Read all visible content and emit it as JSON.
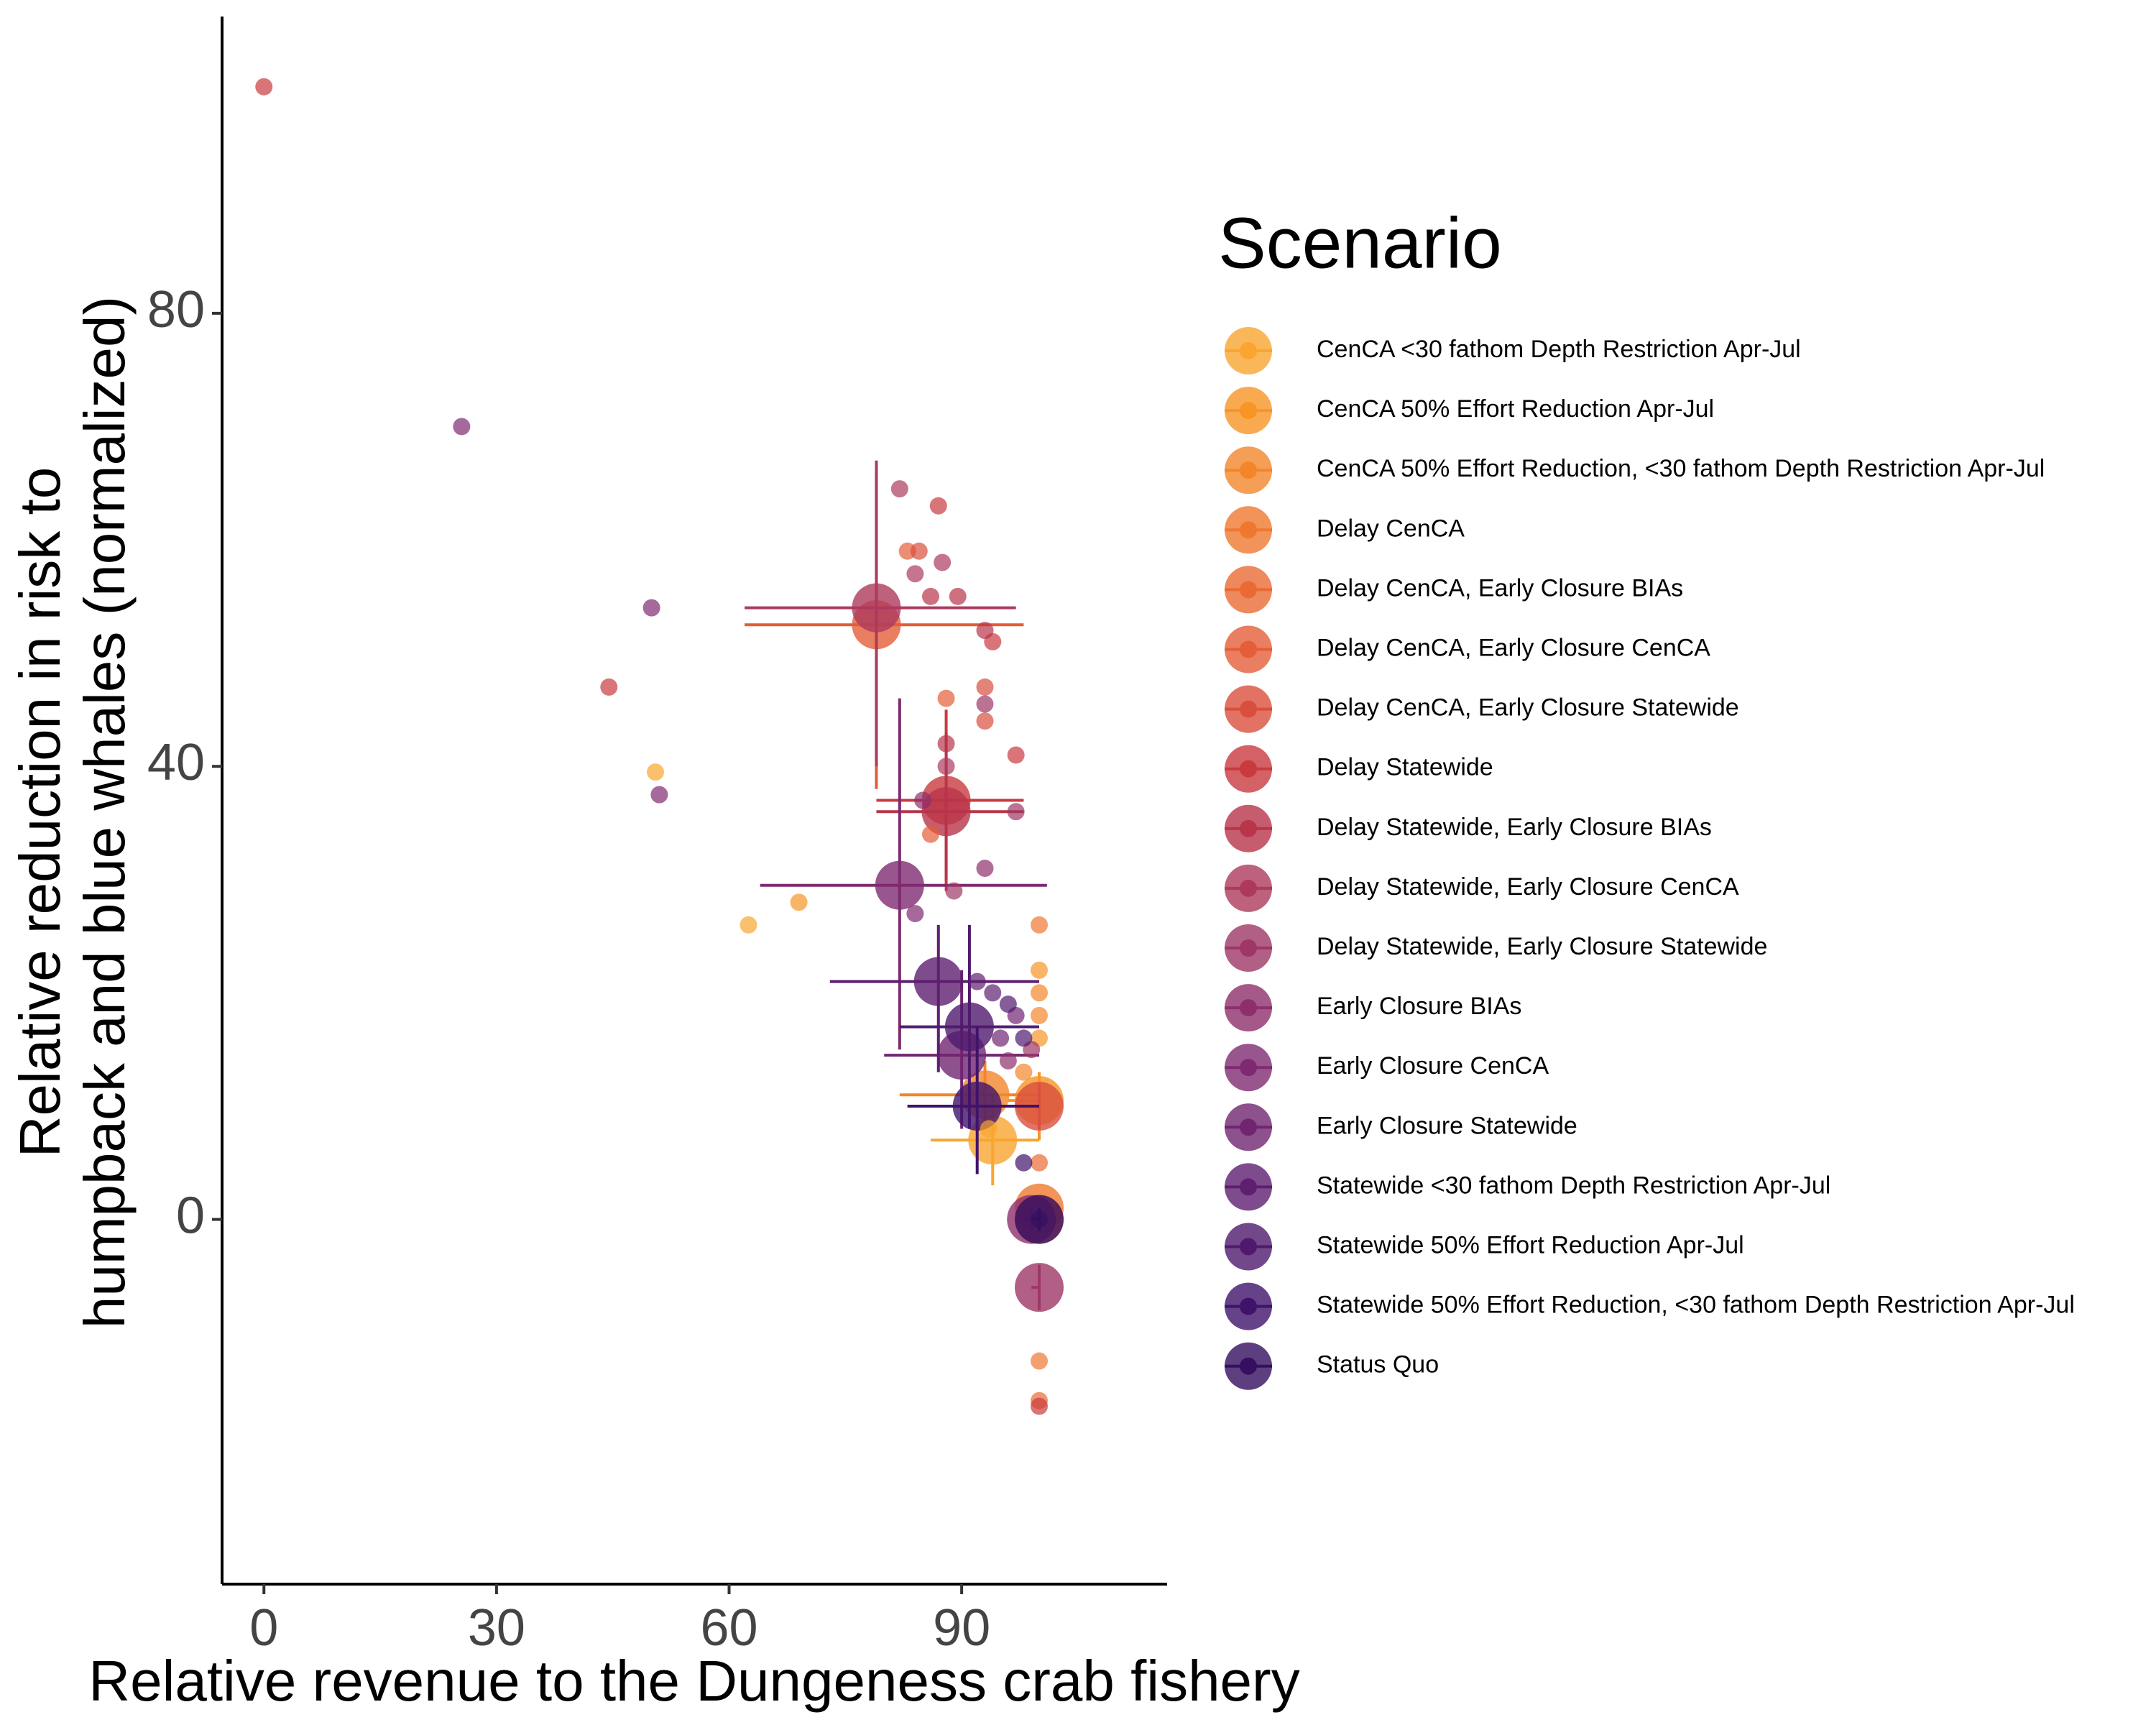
{
  "chart_data": {
    "type": "scatter",
    "xlabel": "Relative revenue to the Dungeness crab fishery",
    "ylabel": [
      "Relative reduction in risk to",
      "humpback and blue whales (normalized)"
    ],
    "legend_title": "Scenario",
    "xlim": [
      -5.4,
      116.5
    ],
    "ylim": [
      -32.2,
      106.2
    ],
    "xticks": [
      0,
      30,
      60,
      90
    ],
    "yticks": [
      0,
      40,
      80
    ],
    "series": [
      {
        "name": "CenCA <30 fathom Depth Restriction Apr-Jul",
        "color": "#f9a530",
        "x": [
          50.5,
          62.5,
          93.5
        ],
        "values": [
          39.5,
          26,
          8
        ],
        "summary": {
          "x": 94,
          "y": 7,
          "x_range": [
            86,
            100
          ],
          "y_range": [
            3,
            11
          ]
        }
      },
      {
        "name": "CenCA 50% Effort Reduction Apr-Jul",
        "color": "#f79526",
        "x": [
          69,
          100,
          100
        ],
        "values": [
          28,
          22,
          16
        ],
        "summary": {
          "x": 100,
          "y": 10.5,
          "x_range": [
            96,
            100
          ],
          "y_range": [
            7,
            13
          ]
        }
      },
      {
        "name": "CenCA 50% Effort Reduction, <30 fathom Depth Restriction Apr-Jul",
        "color": "#f3862a",
        "x": [
          98,
          100,
          100
        ],
        "values": [
          13,
          20,
          18
        ],
        "summary": {
          "x": 93,
          "y": 11,
          "x_range": [
            82,
            100
          ],
          "y_range": [
            8,
            14
          ]
        }
      },
      {
        "name": "Delay CenCA",
        "color": "#ef7830",
        "x": [
          100,
          100
        ],
        "values": [
          26,
          -12.5
        ],
        "summary": {
          "x": 100,
          "y": 1,
          "x_range": [
            99,
            100
          ],
          "y_range": [
            0,
            2
          ]
        }
      },
      {
        "name": "Delay CenCA, Early Closure BIAs",
        "color": "#ea6a34",
        "x": [
          100,
          100
        ],
        "values": [
          -16,
          5
        ],
        "summary": {
          "x": 100,
          "y": 0,
          "x_range": [
            99,
            100
          ],
          "y_range": [
            -1,
            1
          ]
        }
      },
      {
        "name": "Delay CenCA, Early Closure CenCA",
        "color": "#e35e39",
        "x": [
          83,
          86,
          88
        ],
        "values": [
          59,
          34,
          46
        ],
        "summary": {
          "x": 79,
          "y": 52.5,
          "x_range": [
            62,
            98
          ],
          "y_range": [
            38,
            66
          ]
        }
      },
      {
        "name": "Delay CenCA, Early Closure Statewide",
        "color": "#d94f3d",
        "x": [
          84.5,
          93,
          93
        ],
        "values": [
          59,
          47,
          44
        ],
        "summary": {
          "x": 100,
          "y": 10,
          "x_range": [
            98,
            100
          ],
          "y_range": [
            8,
            12
          ]
        }
      },
      {
        "name": "Delay Statewide",
        "color": "#c93a3e",
        "x": [
          0,
          44.5,
          87,
          97,
          100,
          94
        ],
        "values": [
          100,
          47,
          63,
          41,
          -16.5,
          51
        ],
        "summary": {
          "x": 88,
          "y": 37,
          "x_range": [
            79,
            98
          ],
          "y_range": [
            29,
            45
          ]
        }
      },
      {
        "name": "Delay Statewide, Early Closure BIAs",
        "color": "#b8354a",
        "x": [
          88,
          86,
          89.5,
          93
        ],
        "values": [
          42,
          55,
          55,
          52
        ],
        "summary": {
          "x": 88,
          "y": 36,
          "x_range": [
            79,
            98
          ],
          "y_range": [
            30,
            43
          ]
        }
      },
      {
        "name": "Delay Statewide, Early Closure CenCA",
        "color": "#ad3a5c",
        "x": [
          82,
          84,
          87.5,
          88
        ],
        "values": [
          64.5,
          57,
          58,
          40
        ],
        "summary": {
          "x": 79,
          "y": 54,
          "x_range": [
            62,
            97
          ],
          "y_range": [
            40,
            67
          ]
        }
      },
      {
        "name": "Delay Statewide, Early Closure Statewide",
        "color": "#9e3765",
        "x": [
          93,
          97,
          89,
          99
        ],
        "values": [
          45.5,
          36,
          29,
          15
        ],
        "summary": {
          "x": 100,
          "y": -6,
          "x_range": [
            99,
            100
          ],
          "y_range": [
            -8,
            -4
          ]
        }
      },
      {
        "name": "Early Closure BIAs",
        "color": "#8e2f6c",
        "x": [
          85,
          93,
          96
        ],
        "values": [
          37,
          31,
          14
        ],
        "summary": {
          "x": 99,
          "y": 0,
          "x_range": [
            98,
            100
          ],
          "y_range": [
            -1,
            1
          ]
        }
      },
      {
        "name": "Early Closure CenCA",
        "color": "#7f2a70",
        "x": [
          25.5,
          50,
          51,
          84
        ],
        "values": [
          70,
          54,
          37.5,
          27
        ],
        "summary": {
          "x": 82,
          "y": 29.5,
          "x_range": [
            64,
            101
          ],
          "y_range": [
            15,
            46
          ]
        }
      },
      {
        "name": "Early Closure Statewide",
        "color": "#702571",
        "x": [
          95,
          97
        ],
        "values": [
          16,
          18
        ],
        "summary": {
          "x": 90,
          "y": 14.5,
          "x_range": [
            80,
            100
          ],
          "y_range": [
            8,
            22
          ]
        }
      },
      {
        "name": "Statewide <30 fathom Depth Restriction Apr-Jul",
        "color": "#5e1f70",
        "x": [
          92,
          94
        ],
        "values": [
          21,
          20
        ],
        "summary": {
          "x": 87,
          "y": 21,
          "x_range": [
            73,
            100
          ],
          "y_range": [
            13,
            26
          ]
        }
      },
      {
        "name": "Statewide 50% Effort Reduction Apr-Jul",
        "color": "#4f1a6e",
        "x": [
          98,
          96
        ],
        "values": [
          16,
          19
        ],
        "summary": {
          "x": 91,
          "y": 17,
          "x_range": [
            82,
            100
          ],
          "y_range": [
            8,
            26
          ]
        }
      },
      {
        "name": "Statewide 50% Effort Reduction, <30 fathom Depth Restriction Apr-Jul",
        "color": "#40136b",
        "x": [
          98
        ],
        "values": [
          5
        ],
        "summary": {
          "x": 92,
          "y": 10,
          "x_range": [
            83,
            100
          ],
          "y_range": [
            4,
            17
          ]
        }
      },
      {
        "name": "Status Quo",
        "color": "#350f60",
        "x": [
          100
        ],
        "values": [
          0
        ],
        "summary": {
          "x": 100,
          "y": 0,
          "x_range": [
            99,
            100
          ],
          "y_range": [
            -1,
            1
          ]
        }
      }
    ]
  }
}
